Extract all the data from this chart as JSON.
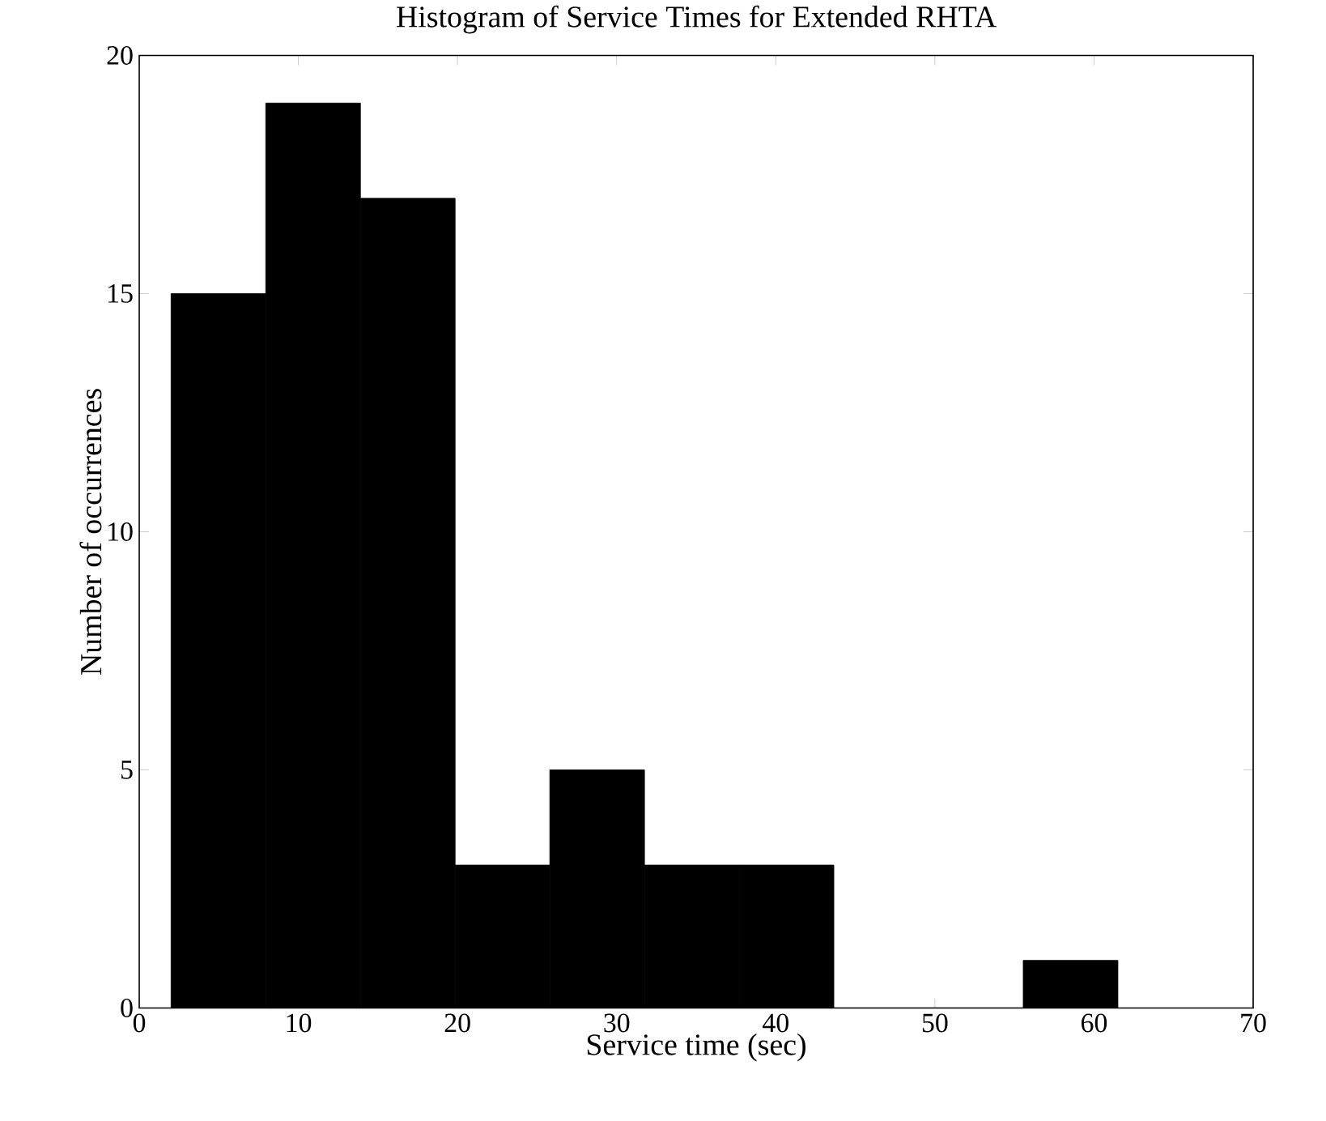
{
  "chart_data": {
    "type": "histogram",
    "title": "Histogram of Service Times for Extended RHTA",
    "xlabel": "Service time (sec)",
    "ylabel": "Number of occurrences",
    "bins": [
      2,
      7.95,
      13.9,
      19.85,
      25.8,
      31.75,
      37.7,
      43.65,
      49.6,
      55.55,
      61.5
    ],
    "values": [
      15,
      19,
      17,
      3,
      5,
      3,
      3,
      0,
      0,
      1
    ],
    "color": "#000000",
    "xlim": [
      0,
      70
    ],
    "xticks": [
      0,
      10,
      20,
      30,
      40,
      50,
      60,
      70
    ],
    "ylim": [
      0,
      20
    ],
    "yticks": [
      0,
      5,
      10,
      15,
      20
    ],
    "grid": false
  }
}
